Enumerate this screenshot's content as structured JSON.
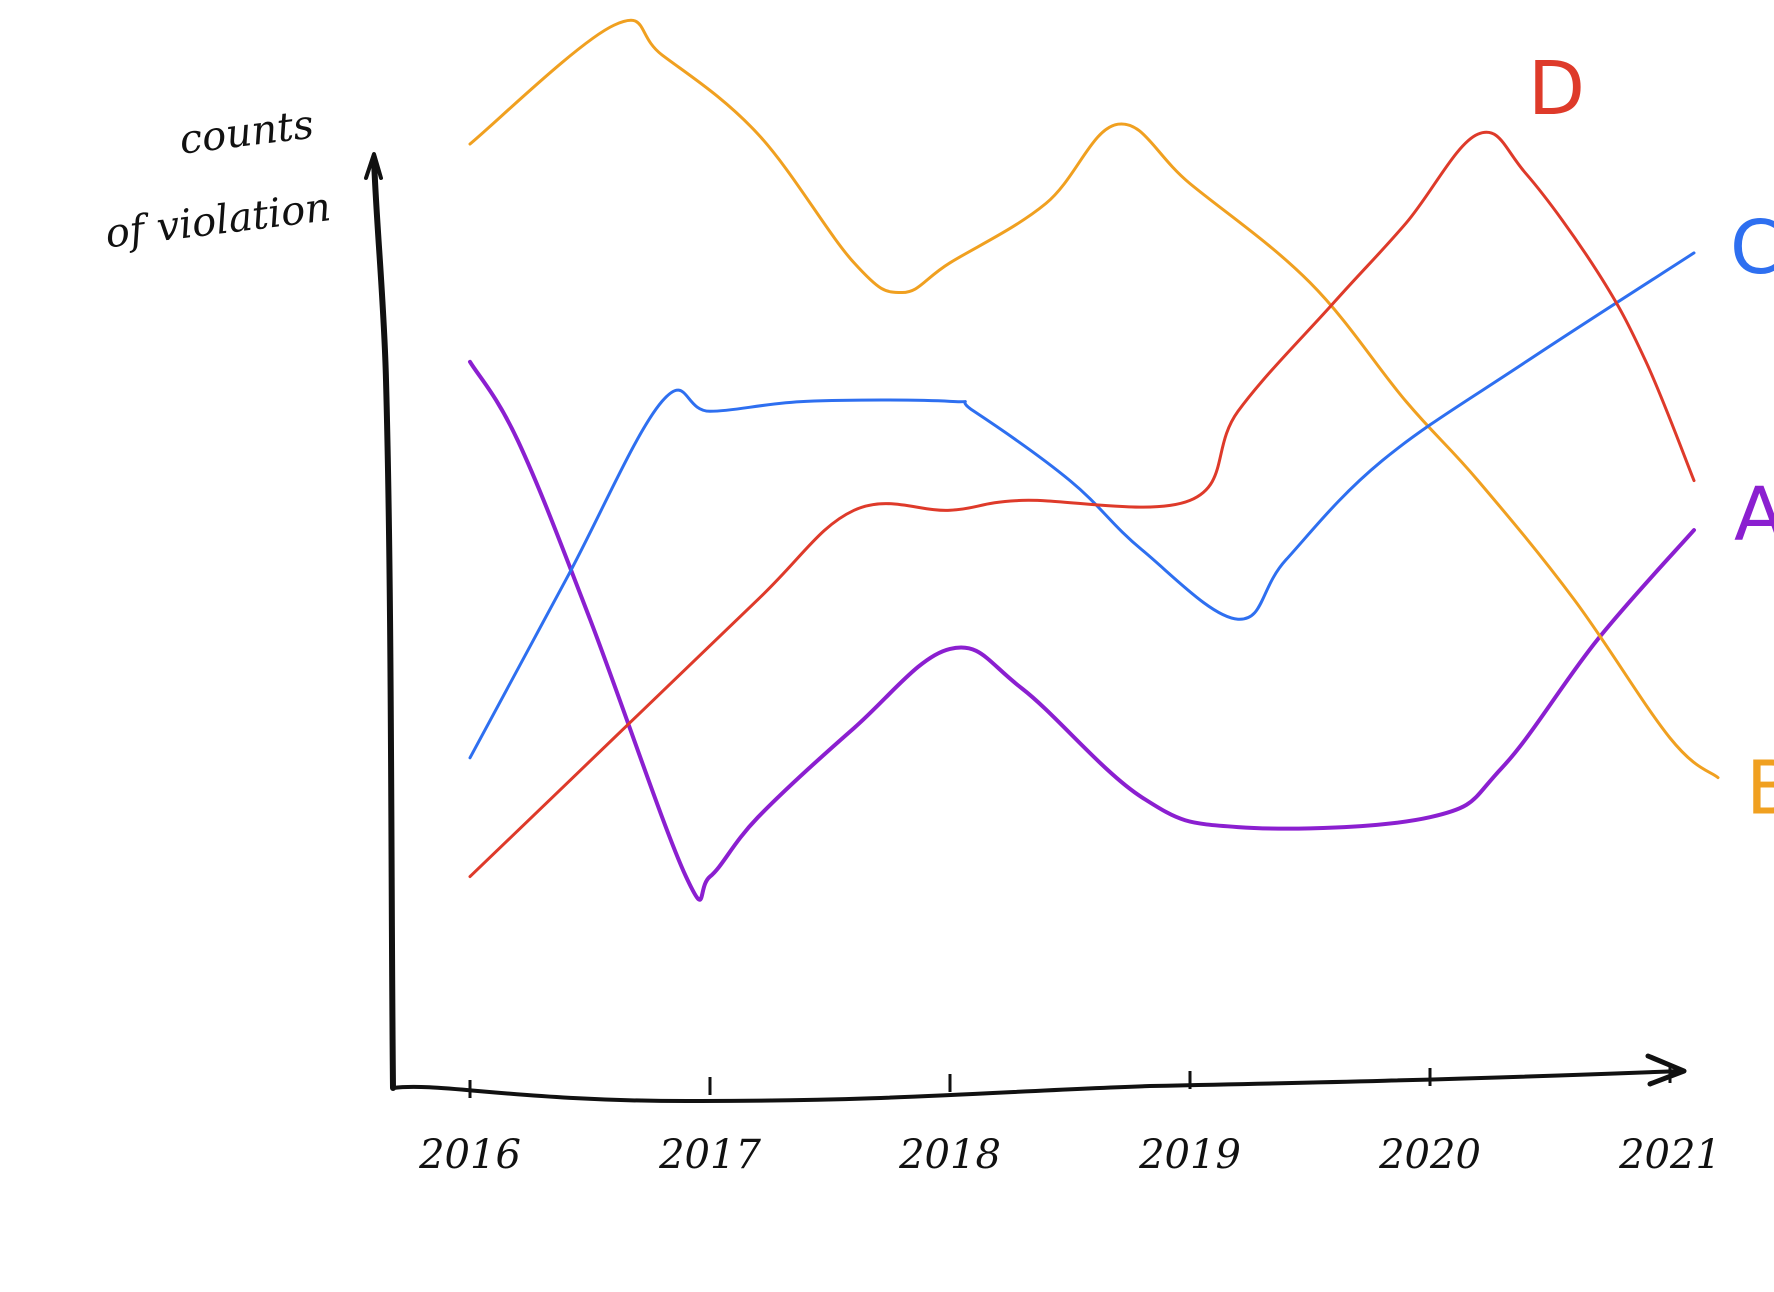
{
  "chart_data": {
    "type": "line",
    "title": "",
    "ylabel": "counts of violation",
    "ylabel_lines": [
      "counts",
      "of violation"
    ],
    "xlabel": "",
    "categories": [
      "2016",
      "2017",
      "2018",
      "2019",
      "2020",
      "2021"
    ],
    "ylim": [
      0,
      100
    ],
    "grid": false,
    "legend_placement": "inline-right",
    "series": [
      {
        "name": "A",
        "color": "#8b1fd0",
        "points": [
          [
            2016.0,
            68
          ],
          [
            2016.2,
            60
          ],
          [
            2016.5,
            42
          ],
          [
            2016.9,
            16
          ],
          [
            2017.0,
            16
          ],
          [
            2017.2,
            22
          ],
          [
            2017.6,
            31
          ],
          [
            2018.0,
            39
          ],
          [
            2018.3,
            35
          ],
          [
            2018.8,
            24
          ],
          [
            2019.2,
            21
          ],
          [
            2020.0,
            22
          ],
          [
            2020.3,
            27
          ],
          [
            2020.7,
            40
          ],
          [
            2021.1,
            51
          ]
        ]
      },
      {
        "name": "B",
        "color": "#f0a020",
        "points": [
          [
            2016.0,
            90
          ],
          [
            2016.6,
            102
          ],
          [
            2016.8,
            99
          ],
          [
            2017.2,
            91
          ],
          [
            2017.6,
            78
          ],
          [
            2017.8,
            75
          ],
          [
            2018.0,
            78
          ],
          [
            2018.4,
            84
          ],
          [
            2018.7,
            92
          ],
          [
            2019.0,
            86
          ],
          [
            2019.5,
            76
          ],
          [
            2019.9,
            64
          ],
          [
            2020.2,
            56
          ],
          [
            2020.6,
            44
          ],
          [
            2021.0,
            30
          ],
          [
            2021.2,
            26
          ]
        ]
      },
      {
        "name": "C",
        "color": "#2e6ff0",
        "points": [
          [
            2016.0,
            28
          ],
          [
            2016.4,
            46
          ],
          [
            2016.8,
            64
          ],
          [
            2017.0,
            63
          ],
          [
            2017.4,
            64
          ],
          [
            2018.0,
            64
          ],
          [
            2018.1,
            63
          ],
          [
            2018.5,
            56
          ],
          [
            2018.8,
            49
          ],
          [
            2019.2,
            42
          ],
          [
            2019.4,
            48
          ],
          [
            2019.8,
            58
          ],
          [
            2020.4,
            68
          ],
          [
            2021.1,
            79
          ]
        ]
      },
      {
        "name": "D",
        "color": "#de3a2a",
        "points": [
          [
            2016.0,
            16
          ],
          [
            2016.6,
            30
          ],
          [
            2017.2,
            44
          ],
          [
            2017.6,
            53
          ],
          [
            2018.0,
            53
          ],
          [
            2018.3,
            54
          ],
          [
            2019.0,
            54
          ],
          [
            2019.2,
            63
          ],
          [
            2019.6,
            74
          ],
          [
            2019.9,
            82
          ],
          [
            2020.2,
            91
          ],
          [
            2020.4,
            87
          ],
          [
            2020.7,
            77
          ],
          [
            2020.9,
            68
          ],
          [
            2021.1,
            56
          ]
        ]
      }
    ]
  }
}
